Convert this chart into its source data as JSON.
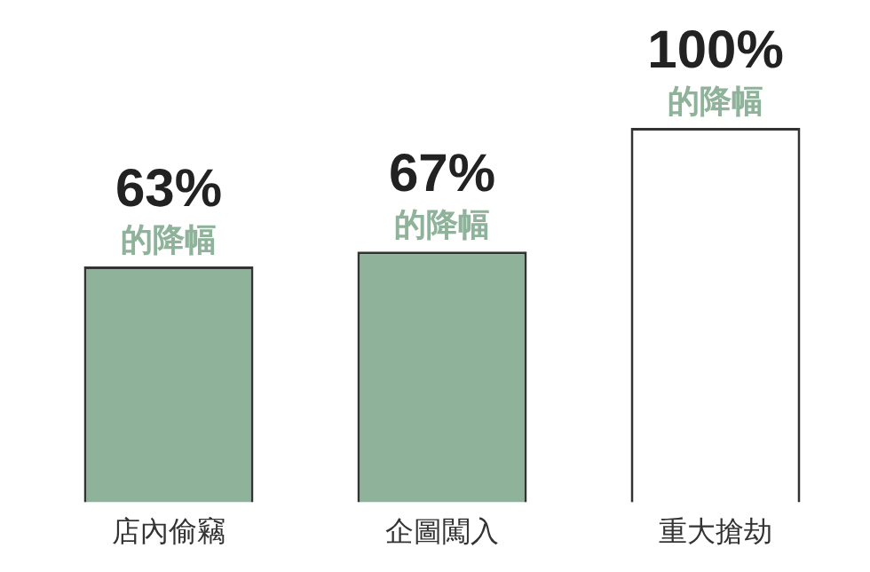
{
  "chart_data": {
    "type": "bar",
    "categories": [
      "店內偷竊",
      "企圖闖入",
      "重大搶劫"
    ],
    "values": [
      63,
      67,
      100
    ],
    "colors": [
      "#8fb39a",
      "#8fb39a",
      "#ffffff"
    ],
    "data_labels": true,
    "value_labels": [
      "63%",
      "67%",
      "100%"
    ],
    "annotations": [
      "的降幅",
      "的降幅",
      "的降幅"
    ],
    "relative": false,
    "grid": false,
    "legend": false
  }
}
